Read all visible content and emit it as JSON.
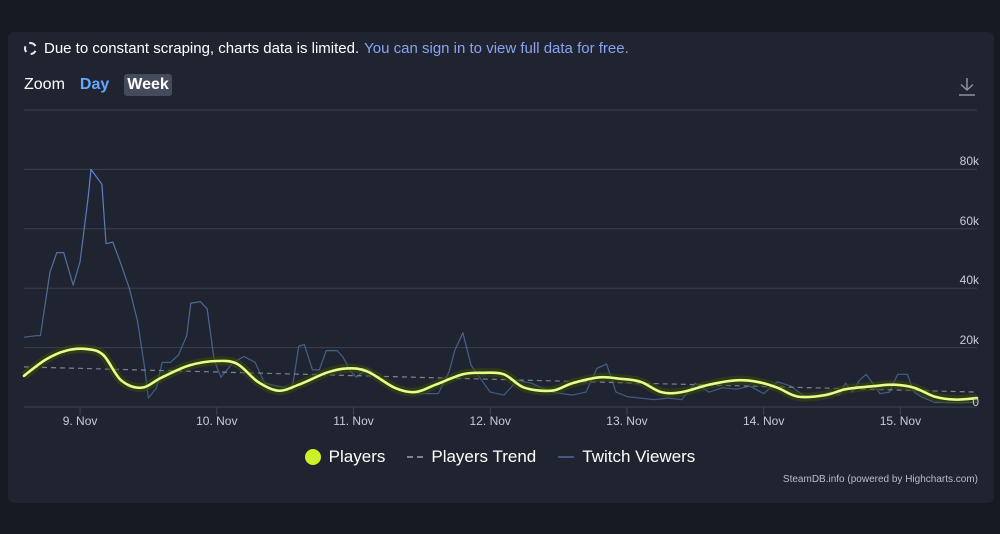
{
  "notice": {
    "icon": "loading-dashed-circle-icon",
    "text": "Due to constant scraping, charts data is limited.",
    "link": "You can sign in to view full data for free."
  },
  "zoom": {
    "label": "Zoom",
    "options": [
      "Day",
      "Week"
    ],
    "selected": "Week"
  },
  "toolbar": {
    "download_icon": "download-icon"
  },
  "colors": {
    "page_bg": "#171a21",
    "panel_bg": "#1f2430",
    "players": "#e5ff8a",
    "players_marker": "#c9f227",
    "players_glow": "#3b4a08",
    "trend": "#7b8390",
    "twitch": "#3e5a85",
    "twitch_peak": "#5d86d9",
    "grid": "#3a404d",
    "link": "#8aa3f0",
    "day_button": "#66a8ff"
  },
  "legend": [
    {
      "label": "Players",
      "type": "dot"
    },
    {
      "label": "Players Trend",
      "type": "dash"
    },
    {
      "label": "Twitch Viewers",
      "type": "solid"
    }
  ],
  "credits": "SteamDB.info (powered by Highcharts.com)",
  "chart_data": {
    "type": "line",
    "title": "",
    "xlabel": "",
    "ylabel": "",
    "x_unit": "days since 8. Nov 00:00",
    "xlim": [
      0.59,
      7.56
    ],
    "ylim": [
      0,
      100000
    ],
    "y_ticks": [
      0,
      20000,
      40000,
      60000,
      80000
    ],
    "y_tick_labels": [
      "0",
      "20k",
      "40k",
      "60k",
      "80k"
    ],
    "x_ticks": [
      1,
      2,
      3,
      4,
      5,
      6,
      7
    ],
    "x_tick_labels": [
      "9. Nov",
      "10. Nov",
      "11. Nov",
      "12. Nov",
      "13. Nov",
      "14. Nov",
      "15. Nov"
    ],
    "grid": true,
    "legend_position": "bottom-center",
    "series": [
      {
        "name": "Players",
        "style": "smooth-solid",
        "x": [
          0.59,
          0.75,
          0.9,
          1.05,
          1.17,
          1.3,
          1.45,
          1.6,
          1.8,
          2.0,
          2.15,
          2.3,
          2.45,
          2.6,
          2.8,
          2.95,
          3.1,
          3.3,
          3.45,
          3.6,
          3.8,
          3.95,
          4.1,
          4.25,
          4.45,
          4.6,
          4.8,
          4.95,
          5.1,
          5.25,
          5.4,
          5.6,
          5.8,
          5.95,
          6.1,
          6.25,
          6.45,
          6.6,
          6.8,
          6.95,
          7.1,
          7.25,
          7.4,
          7.56
        ],
        "y": [
          10500,
          16000,
          19000,
          19500,
          17500,
          9000,
          6500,
          10000,
          14000,
          15500,
          14500,
          8500,
          5500,
          7500,
          11500,
          13000,
          12000,
          6500,
          5000,
          7500,
          11000,
          11500,
          11000,
          6500,
          5500,
          8000,
          10000,
          9500,
          8500,
          5000,
          5000,
          7500,
          9000,
          8500,
          6500,
          3500,
          4000,
          6000,
          7000,
          7500,
          6500,
          3500,
          2500,
          3000
        ]
      },
      {
        "name": "Players Trend",
        "style": "dashed",
        "x": [
          0.59,
          7.56
        ],
        "y": [
          13500,
          5000
        ]
      },
      {
        "name": "Twitch Viewers",
        "style": "solid-thin",
        "x": [
          0.59,
          0.68,
          0.71,
          0.78,
          0.83,
          0.88,
          0.95,
          1.0,
          1.06,
          1.08,
          1.16,
          1.19,
          1.24,
          1.3,
          1.36,
          1.42,
          1.47,
          1.5,
          1.56,
          1.6,
          1.66,
          1.72,
          1.78,
          1.81,
          1.88,
          1.93,
          1.98,
          2.03,
          2.12,
          2.2,
          2.28,
          2.35,
          2.45,
          2.55,
          2.6,
          2.64,
          2.7,
          2.75,
          2.8,
          2.88,
          2.92,
          2.98,
          3.02,
          3.1,
          3.2,
          3.35,
          3.5,
          3.62,
          3.7,
          3.74,
          3.8,
          3.86,
          4.0,
          4.05,
          4.1,
          4.2,
          4.3,
          4.45,
          4.6,
          4.7,
          4.78,
          4.85,
          4.92,
          5.0,
          5.1,
          5.2,
          5.3,
          5.4,
          5.5,
          5.6,
          5.7,
          5.8,
          5.9,
          6.0,
          6.1,
          6.2,
          6.3,
          6.4,
          6.5,
          6.55,
          6.6,
          6.65,
          6.7,
          6.75,
          6.85,
          6.92,
          6.98,
          7.05,
          7.1,
          7.15,
          7.25,
          7.4,
          7.56
        ],
        "y": [
          23500,
          24000,
          24000,
          45500,
          52000,
          52000,
          41000,
          49000,
          71000,
          80000,
          75000,
          55000,
          55500,
          48000,
          40000,
          29000,
          14000,
          3000,
          6500,
          15000,
          15000,
          17500,
          24000,
          35000,
          35500,
          33000,
          16000,
          10000,
          15000,
          17000,
          15000,
          8000,
          7000,
          6000,
          20500,
          21000,
          12500,
          12500,
          19000,
          19000,
          17000,
          12000,
          10000,
          13000,
          9500,
          5500,
          4500,
          4500,
          12000,
          19000,
          25000,
          14000,
          5000,
          4500,
          4000,
          9000,
          8000,
          5000,
          4000,
          5000,
          13000,
          14500,
          5000,
          3500,
          3000,
          2500,
          3000,
          2500,
          8000,
          5000,
          6500,
          6000,
          7000,
          4500,
          8500,
          7000,
          3500,
          4000,
          5000,
          4000,
          8000,
          5000,
          9000,
          11000,
          4500,
          5000,
          11000,
          11000,
          5000,
          3500,
          1500,
          1500,
          1500
        ]
      }
    ]
  }
}
